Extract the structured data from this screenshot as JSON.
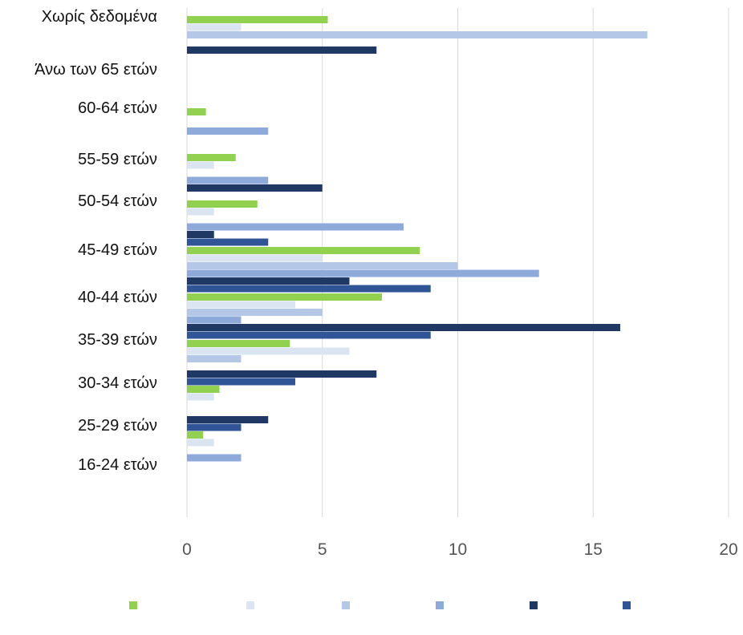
{
  "chart_data": {
    "type": "bar",
    "orientation": "horizontal",
    "categories": [
      "Χωρίς δεδομένα",
      "Άνω των 65 ετών",
      "60-64 ετών",
      "55-59 ετών",
      "50-54 ετών",
      "45-49 ετών",
      "40-44 ετών",
      "35-39 ετών",
      "30-34 ετών",
      "25-29 ετών",
      "16-24 ετών"
    ],
    "series": [
      {
        "color": "#92d050",
        "values": [
          5.2,
          0,
          0.7,
          1.8,
          2.6,
          8.6,
          7.2,
          3.8,
          1.2,
          0.6,
          0
        ]
      },
      {
        "color": "#dbe5f1",
        "values": [
          2,
          0,
          0,
          1,
          1,
          5,
          4,
          6,
          1,
          1,
          0
        ]
      },
      {
        "color": "#b4c7e7",
        "values": [
          17,
          0,
          0,
          0,
          0,
          10,
          5,
          2,
          0,
          0,
          0
        ]
      },
      {
        "color": "#8eaadb",
        "values": [
          0,
          0,
          3,
          3,
          8,
          13,
          2,
          0,
          0,
          2,
          0
        ]
      },
      {
        "color": "#1f3864",
        "values": [
          7,
          0,
          0,
          5,
          1,
          6,
          16,
          7,
          3,
          0,
          0
        ]
      },
      {
        "color": "#2f5597",
        "values": [
          0,
          0,
          0,
          0,
          3,
          9,
          9,
          4,
          2,
          0,
          0
        ]
      }
    ],
    "xlim": [
      0,
      20
    ],
    "x_ticks": [
      "0",
      "5",
      "10",
      "15",
      "20"
    ],
    "grid": true,
    "legend_position": "bottom",
    "title": "",
    "xlabel": "",
    "ylabel": ""
  }
}
